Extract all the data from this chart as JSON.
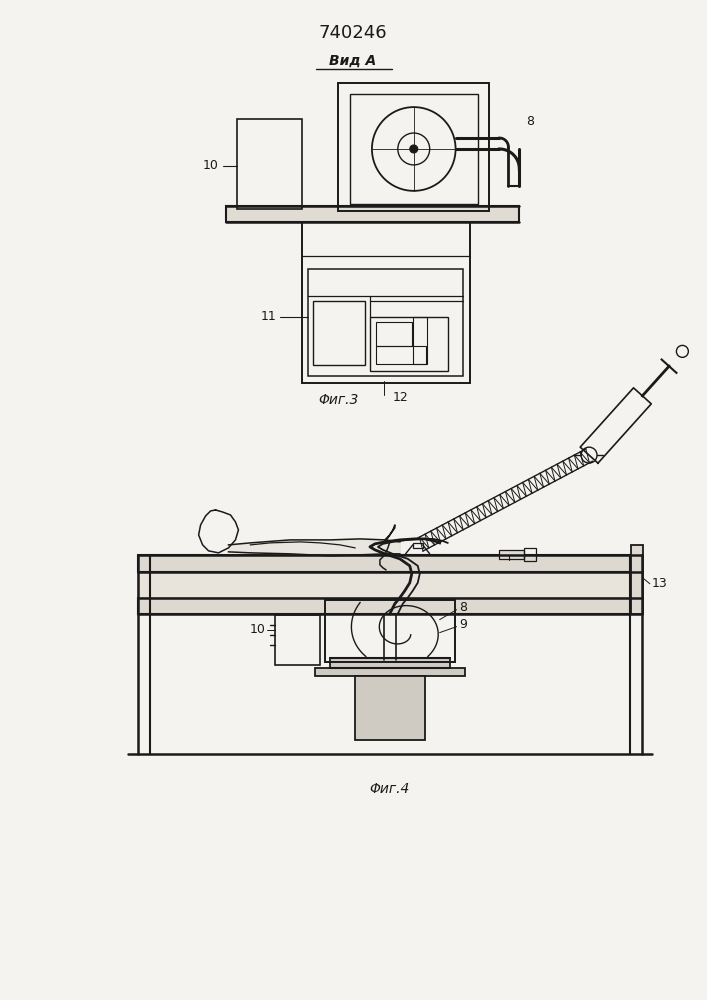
{
  "title": "740246",
  "view_label": "Вид А",
  "fig3_label": "Φиг.3",
  "fig4_label": "Φиг.4",
  "bg_color": "#f5f3ef",
  "line_color": "#1a1a1a",
  "lw": 1.1
}
